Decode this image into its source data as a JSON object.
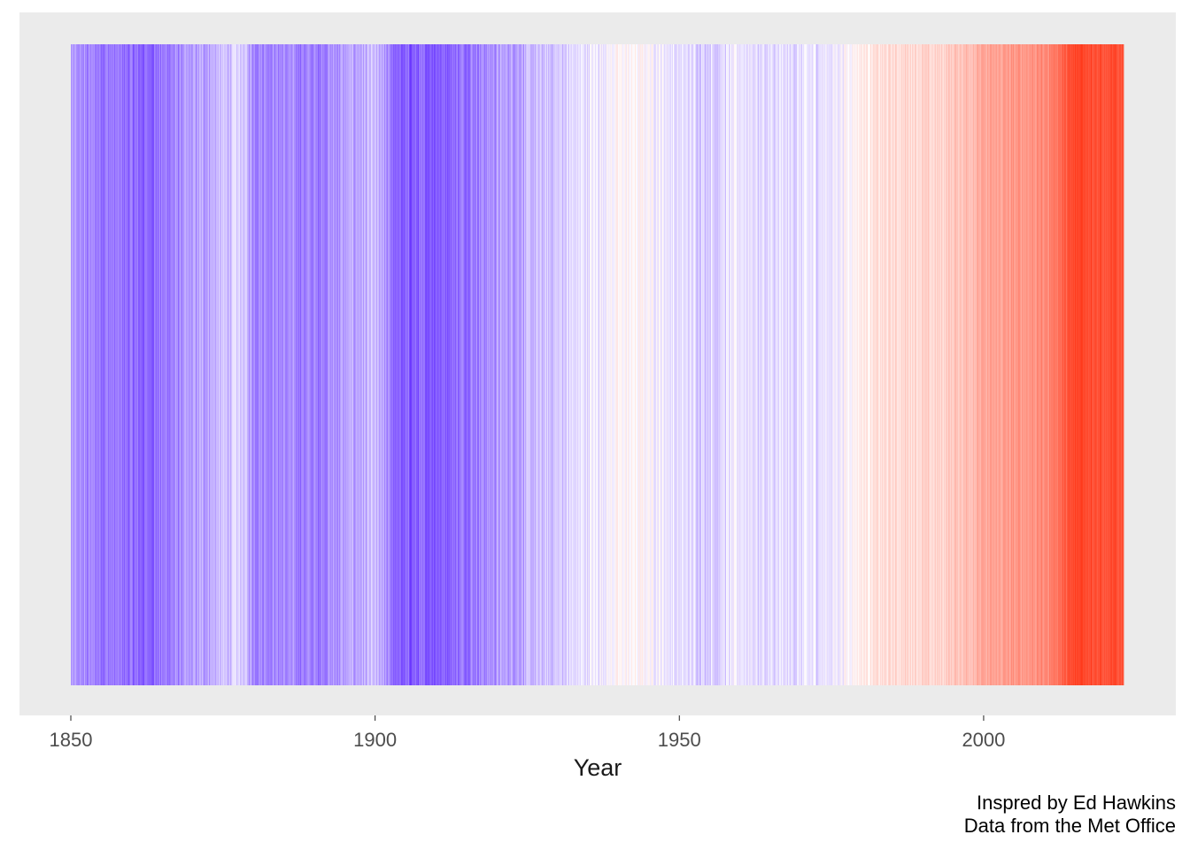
{
  "chart_data": {
    "type": "heatmap",
    "title": "",
    "xlabel": "Year",
    "ylabel": "",
    "x_start": 1850,
    "x_end": 2023,
    "xlim": [
      1850,
      2023
    ],
    "x_ticks": [
      1850,
      1900,
      1950,
      2000
    ],
    "x_tick_labels": [
      "1850",
      "1900",
      "1950",
      "2000"
    ],
    "grid": false,
    "legend": "none",
    "panel_background": "#ebebeb",
    "color_scale": {
      "cold": "#6633ff",
      "neutral": "#ffffff",
      "warm": "#ff2200"
    },
    "anomaly_range": [
      -0.55,
      1.05
    ],
    "monthly_anomaly_keyframes": [
      {
        "year": 1850,
        "value": -0.3
      },
      {
        "year": 1862,
        "value": -0.42
      },
      {
        "year": 1870,
        "value": -0.28
      },
      {
        "year": 1878,
        "value": -0.12
      },
      {
        "year": 1880,
        "value": -0.3
      },
      {
        "year": 1890,
        "value": -0.35
      },
      {
        "year": 1896,
        "value": -0.25
      },
      {
        "year": 1900,
        "value": -0.2
      },
      {
        "year": 1904,
        "value": -0.45
      },
      {
        "year": 1911,
        "value": -0.42
      },
      {
        "year": 1920,
        "value": -0.28
      },
      {
        "year": 1930,
        "value": -0.15
      },
      {
        "year": 1940,
        "value": 0.02
      },
      {
        "year": 1945,
        "value": 0.02
      },
      {
        "year": 1950,
        "value": -0.1
      },
      {
        "year": 1956,
        "value": -0.12
      },
      {
        "year": 1960,
        "value": -0.05
      },
      {
        "year": 1965,
        "value": -0.12
      },
      {
        "year": 1975,
        "value": -0.06
      },
      {
        "year": 1980,
        "value": 0.1
      },
      {
        "year": 1988,
        "value": 0.2
      },
      {
        "year": 1992,
        "value": 0.18
      },
      {
        "year": 2000,
        "value": 0.4
      },
      {
        "year": 2010,
        "value": 0.55
      },
      {
        "year": 2016,
        "value": 0.92
      },
      {
        "year": 2020,
        "value": 0.8
      },
      {
        "year": 2023,
        "value": 0.85
      }
    ],
    "monthly_noise_amplitude": 0.12,
    "months_per_year": 12
  },
  "caption": {
    "line1": "Inspred by Ed Hawkins",
    "line2": "Data from the Met Office"
  }
}
